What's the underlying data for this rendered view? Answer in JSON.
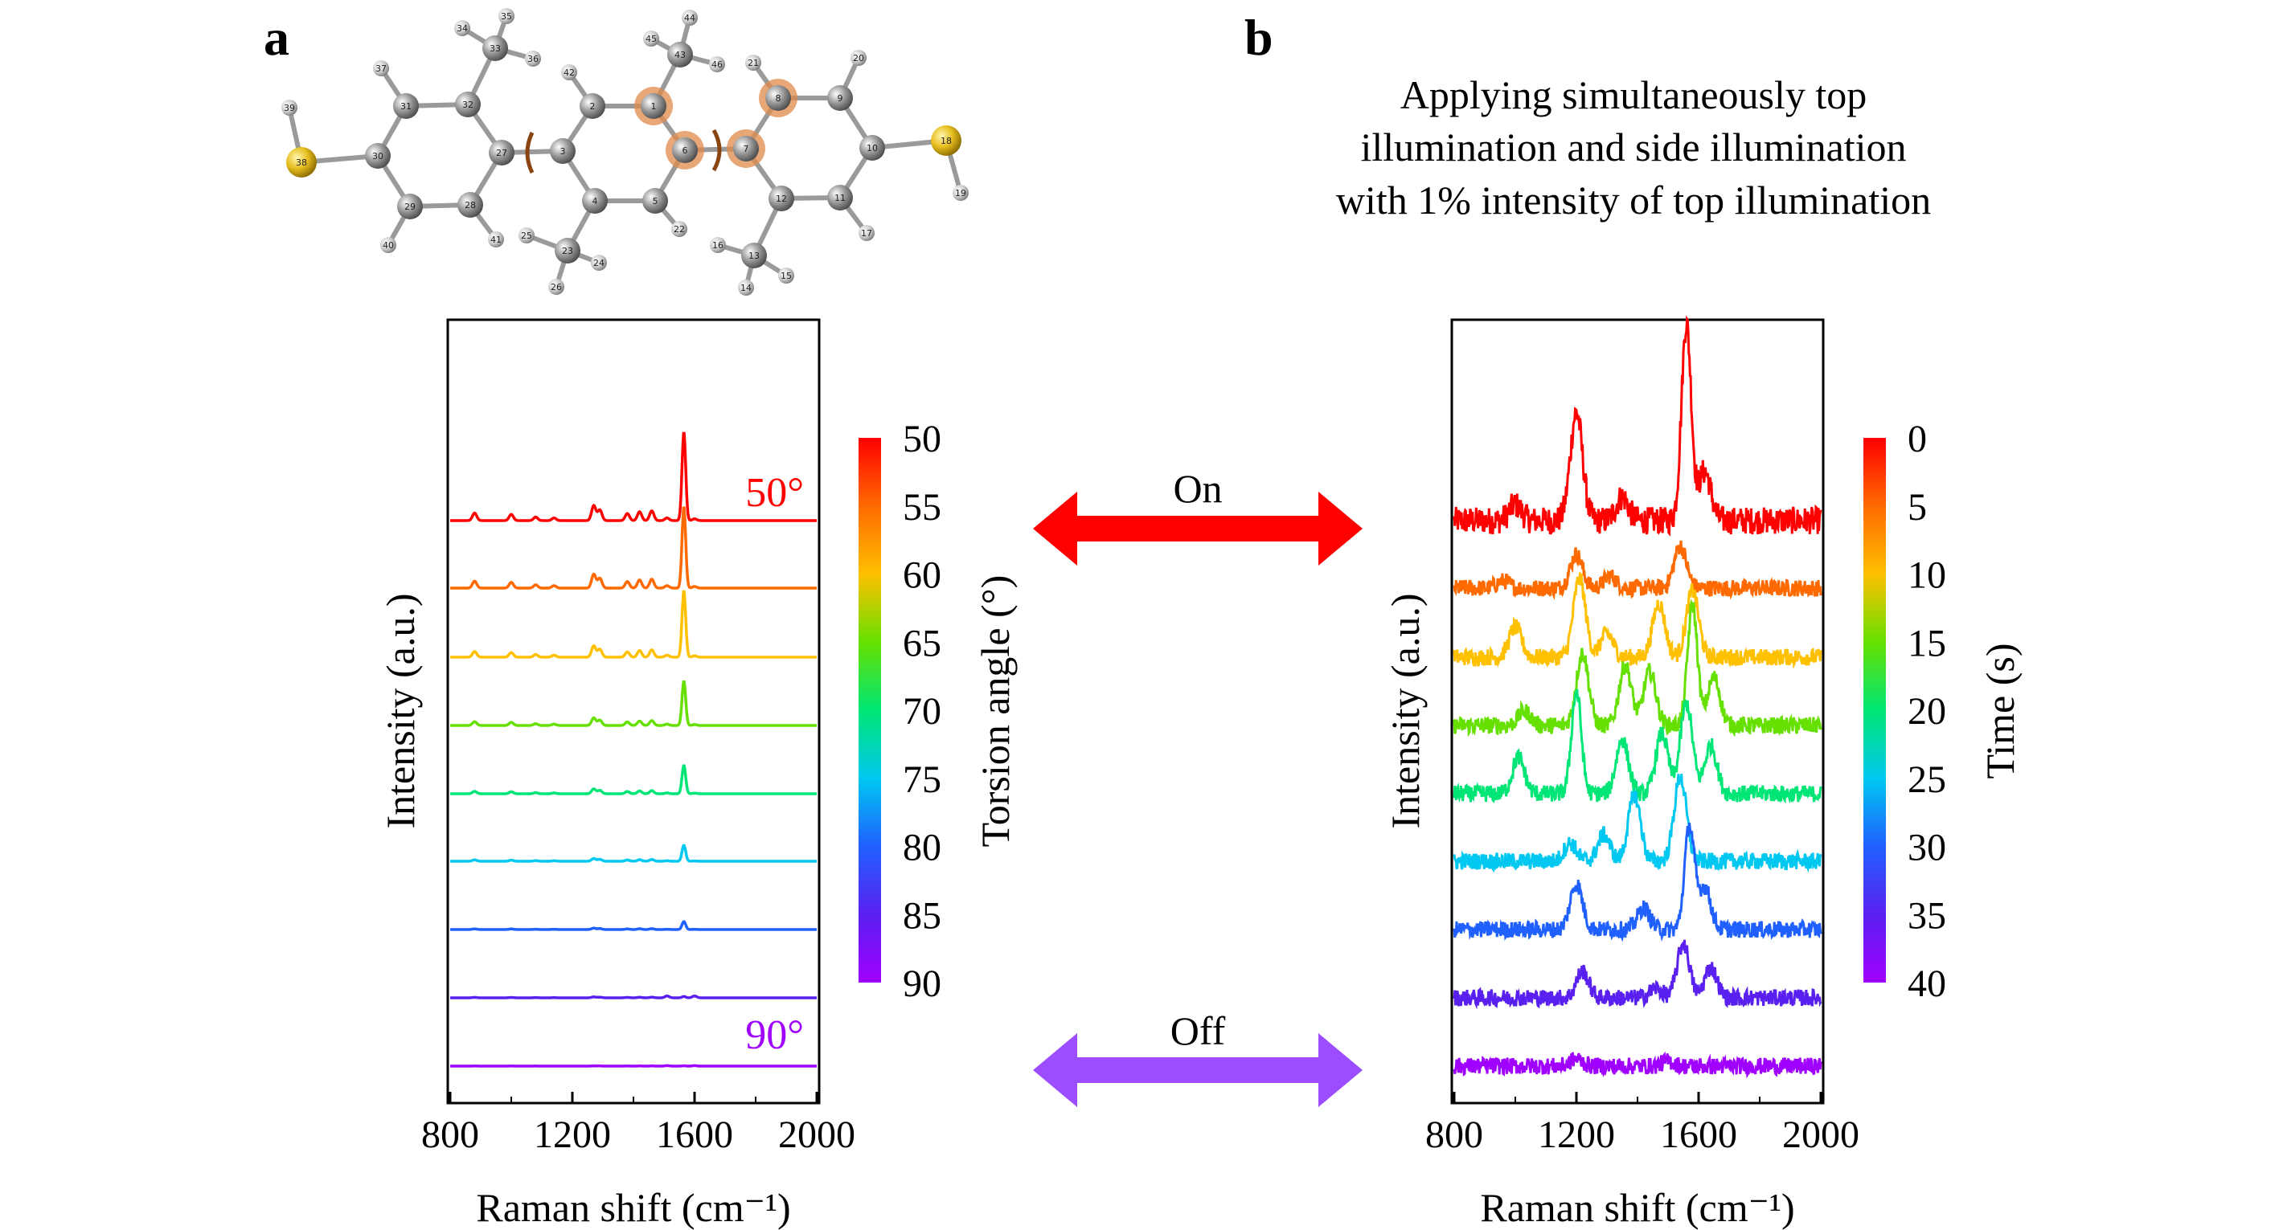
{
  "panel_a": {
    "label": "a",
    "molecule_atom_numbers": [
      "1",
      "2",
      "3",
      "4",
      "5",
      "6",
      "7",
      "8",
      "9",
      "10",
      "11",
      "12",
      "13",
      "14",
      "15",
      "16",
      "17",
      "18",
      "19",
      "20",
      "21",
      "22",
      "23",
      "24",
      "25",
      "26",
      "27",
      "28",
      "29",
      "30",
      "31",
      "32",
      "33",
      "34",
      "35",
      "36",
      "37",
      "38",
      "39",
      "40",
      "41",
      "42",
      "43",
      "44",
      "45",
      "46"
    ]
  },
  "panel_b": {
    "label": "b",
    "caption_lines": [
      "Applying simultaneously top",
      "illumination and side illumination",
      "with 1% intensity of top illumination"
    ]
  },
  "arrows": {
    "on": {
      "label": "On",
      "color": "#ff0000"
    },
    "off": {
      "label": "Off",
      "color": "#9b4dff"
    }
  },
  "chart_data": [
    {
      "type": "line",
      "panel": "a",
      "xlabel": "Raman shift (cm⁻¹)",
      "ylabel": "Intensity (a.u.)",
      "xlim": [
        800,
        2000
      ],
      "xticks": [
        800,
        1200,
        1600,
        2000
      ],
      "annotations": [
        "50°",
        "90°"
      ],
      "colorbar": {
        "label": "Torsion angle (°)",
        "ticks": [
          50,
          55,
          60,
          65,
          70,
          75,
          80,
          85,
          90
        ],
        "range": [
          50,
          90
        ],
        "colors": [
          "#ff0000",
          "#ff6a00",
          "#ffc000",
          "#66e000",
          "#00e676",
          "#00c8f0",
          "#2060ff",
          "#5a20f0",
          "#a000ff"
        ]
      },
      "peaks_cm1": [
        880,
        1000,
        1080,
        1140,
        1270,
        1290,
        1380,
        1420,
        1460,
        1510,
        1565,
        1600
      ],
      "series": [
        {
          "name": "50",
          "main_peak_rel_intensity": 1.0
        },
        {
          "name": "55",
          "main_peak_rel_intensity": 0.92
        },
        {
          "name": "60",
          "main_peak_rel_intensity": 0.75
        },
        {
          "name": "65",
          "main_peak_rel_intensity": 0.5
        },
        {
          "name": "70",
          "main_peak_rel_intensity": 0.32
        },
        {
          "name": "75",
          "main_peak_rel_intensity": 0.18
        },
        {
          "name": "80",
          "main_peak_rel_intensity": 0.09
        },
        {
          "name": "85",
          "main_peak_rel_intensity": 0.06
        },
        {
          "name": "90",
          "main_peak_rel_intensity": 0.015
        }
      ]
    },
    {
      "type": "line",
      "panel": "b",
      "xlabel": "Raman shift (cm⁻¹)",
      "ylabel": "Intensity (a.u.)",
      "xlim": [
        800,
        2000
      ],
      "xticks": [
        800,
        1200,
        1600,
        2000
      ],
      "colorbar": {
        "label": "Time (s)",
        "ticks": [
          0,
          5,
          10,
          15,
          20,
          25,
          30,
          35,
          40
        ],
        "range": [
          0,
          40
        ],
        "colors": [
          "#ff0000",
          "#ff6a00",
          "#ffc000",
          "#66e000",
          "#00e676",
          "#00c8f0",
          "#2060ff",
          "#5a20f0",
          "#a000ff"
        ]
      },
      "series": [
        {
          "name": "0",
          "peaks": [
            [
              1200,
              0.55
            ],
            [
              1560,
              1.0
            ],
            [
              1620,
              0.25
            ],
            [
              1000,
              0.08
            ],
            [
              1350,
              0.12
            ]
          ]
        },
        {
          "name": "5",
          "peaks": [
            [
              1200,
              0.28
            ],
            [
              1540,
              0.35
            ],
            [
              960,
              0.06
            ],
            [
              1310,
              0.1
            ]
          ]
        },
        {
          "name": "10",
          "peaks": [
            [
              1210,
              0.65
            ],
            [
              1000,
              0.25
            ],
            [
              1470,
              0.45
            ],
            [
              1580,
              0.55
            ],
            [
              1300,
              0.2
            ]
          ]
        },
        {
          "name": "15",
          "peaks": [
            [
              1220,
              0.6
            ],
            [
              1360,
              0.5
            ],
            [
              1440,
              0.45
            ],
            [
              1580,
              1.0
            ],
            [
              1650,
              0.4
            ],
            [
              1030,
              0.12
            ]
          ]
        },
        {
          "name": "20",
          "peaks": [
            [
              1010,
              0.3
            ],
            [
              1200,
              0.85
            ],
            [
              1350,
              0.45
            ],
            [
              1480,
              0.5
            ],
            [
              1560,
              0.75
            ],
            [
              1640,
              0.4
            ]
          ]
        },
        {
          "name": "25",
          "peaks": [
            [
              1390,
              0.55
            ],
            [
              1290,
              0.22
            ],
            [
              1540,
              0.7
            ],
            [
              1180,
              0.15
            ]
          ]
        },
        {
          "name": "30",
          "peaks": [
            [
              1200,
              0.38
            ],
            [
              1420,
              0.18
            ],
            [
              1570,
              0.85
            ],
            [
              1620,
              0.35
            ]
          ]
        },
        {
          "name": "35",
          "peaks": [
            [
              1220,
              0.22
            ],
            [
              1550,
              0.45
            ],
            [
              1640,
              0.25
            ],
            [
              1460,
              0.08
            ]
          ]
        },
        {
          "name": "40",
          "peaks": [
            [
              1200,
              0.06
            ],
            [
              1500,
              0.04
            ]
          ]
        }
      ]
    }
  ]
}
